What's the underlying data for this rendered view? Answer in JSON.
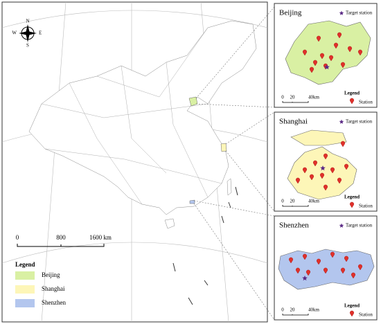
{
  "main_map": {
    "compass": [
      "N",
      "S",
      "W",
      "E"
    ],
    "scale_bar": [
      "0",
      "800",
      "1600 km"
    ],
    "legend": {
      "title": "Legend",
      "items": [
        {
          "label": "Beijing",
          "color": "#d9f0a3"
        },
        {
          "label": "Shanghai",
          "color": "#fdf6b8"
        },
        {
          "label": "Shenzhen",
          "color": "#b3c6ee"
        }
      ]
    }
  },
  "insets": [
    {
      "title": "Beijing",
      "target_label": "Target station",
      "legend_title": "Legend",
      "station_label": "Station",
      "scale_bar": [
        "0",
        "20",
        "40km"
      ]
    },
    {
      "title": "Shanghai",
      "target_label": "Target station",
      "legend_title": "Legend",
      "station_label": "Station",
      "scale_bar": [
        "0",
        "20",
        "40km"
      ]
    },
    {
      "title": "Shenzhen",
      "target_label": "Target station",
      "legend_title": "Legend",
      "station_label": "Station",
      "scale_bar": [
        "0",
        "20",
        "40km"
      ]
    }
  ]
}
